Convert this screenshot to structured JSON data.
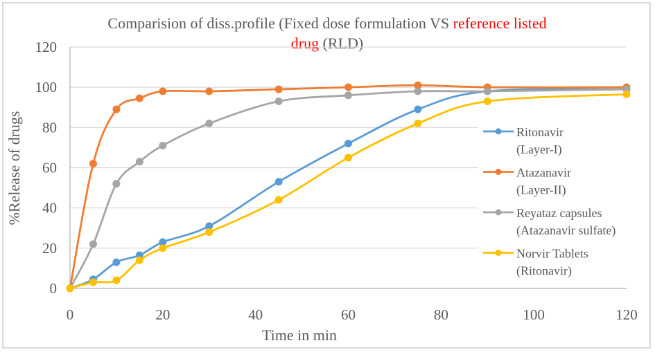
{
  "chart_data": {
    "type": "line",
    "title": {
      "line1_plain": "Comparision of diss.profile (Fixed dose formulation VS ",
      "line1_red": "reference listed",
      "line2_red": "drug",
      "line2_plain": " (RLD)",
      "full": "Comparision of diss.profile (Fixed dose formulation VS reference listed drug (RLD)"
    },
    "xlabel": "Time in min",
    "ylabel": "%Release of drugs",
    "xlim": [
      0,
      120
    ],
    "ylim": [
      0,
      120
    ],
    "xticks": [
      0,
      20,
      40,
      60,
      80,
      100,
      120
    ],
    "yticks": [
      0,
      20,
      40,
      60,
      80,
      100,
      120
    ],
    "grid": "horizontal",
    "legend_position": "right",
    "smooth": true,
    "x": [
      0,
      5,
      10,
      15,
      20,
      30,
      45,
      60,
      75,
      90,
      120
    ],
    "series": [
      {
        "name": "Ritonavir (Layer-I)",
        "legend_lines": [
          "Ritonavir",
          "(Layer-I)"
        ],
        "color": "#5b9bd5",
        "values": [
          0,
          4.5,
          13,
          16.5,
          23,
          31,
          53,
          72,
          89,
          98,
          99
        ]
      },
      {
        "name": "Atazanavir (Layer-II)",
        "legend_lines": [
          "Atazanavir",
          "(Layer-II)"
        ],
        "color": "#ed7d31",
        "values": [
          0,
          62,
          89,
          94.5,
          98,
          98,
          99,
          100,
          101,
          100,
          100
        ]
      },
      {
        "name": "Reyataz capsules (Atazanavir sulfate)",
        "legend_lines": [
          "Reyataz capsules",
          " (Atazanavir sulfate)"
        ],
        "color": "#a5a5a5",
        "values": [
          0,
          22,
          52,
          63,
          71,
          82,
          93,
          96,
          98,
          98,
          99
        ]
      },
      {
        "name": "Norvir Tablets (Ritonavir)",
        "legend_lines": [
          "Norvir Tablets",
          "(Ritonavir)"
        ],
        "color": "#ffc000",
        "values": [
          0,
          3,
          4,
          14,
          20,
          28,
          44,
          65,
          82,
          93,
          96.5
        ]
      }
    ]
  }
}
